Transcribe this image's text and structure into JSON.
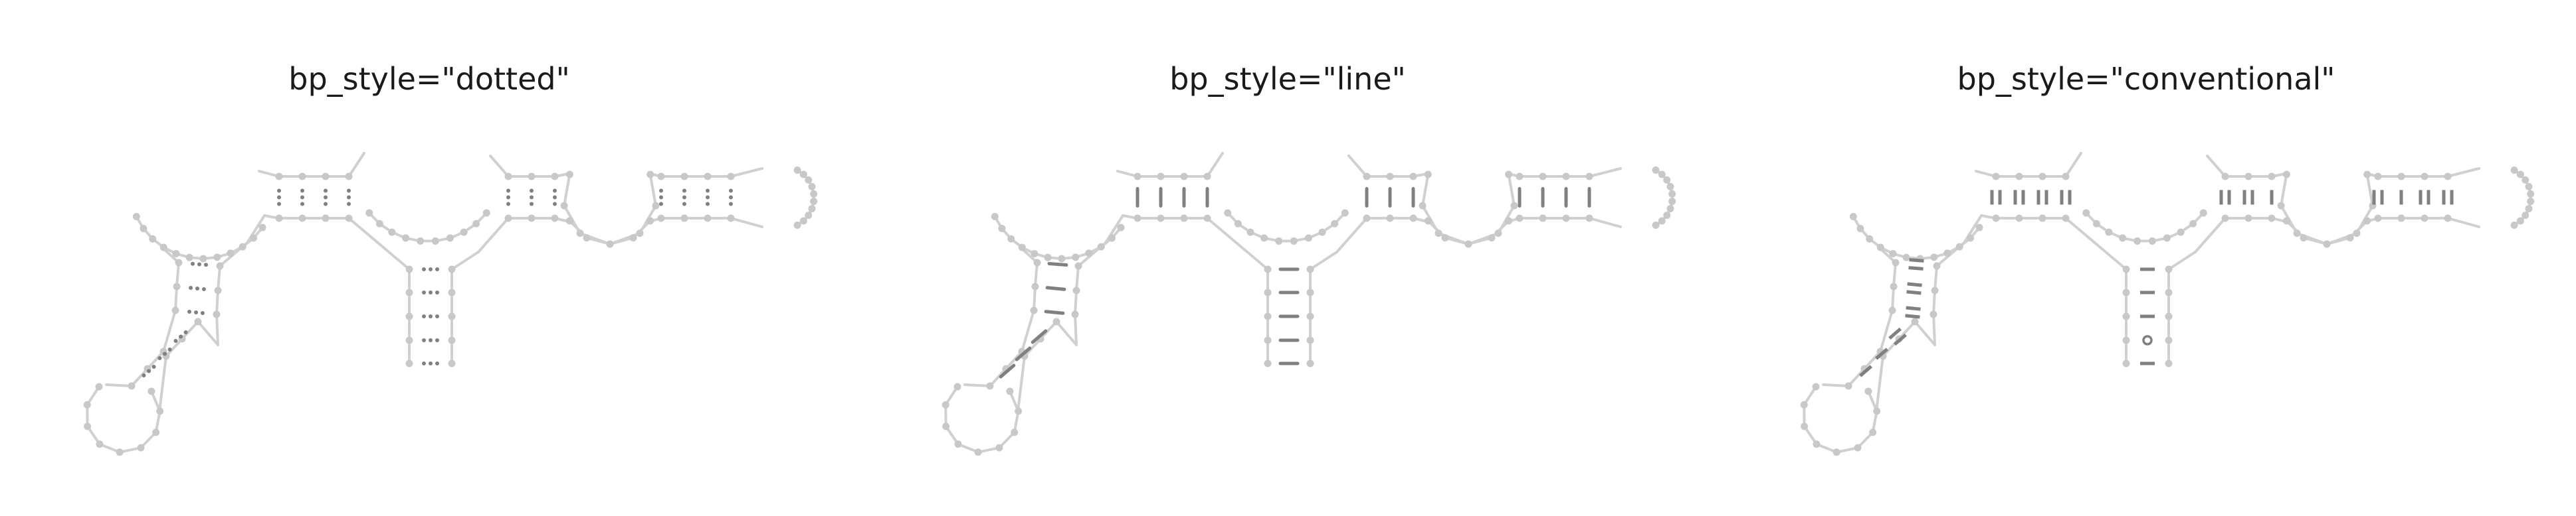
{
  "panels": [
    {
      "title": "bp_style=\"dotted\"",
      "style": "dotted"
    },
    {
      "title": "bp_style=\"line\"",
      "style": "line"
    },
    {
      "title": "bp_style=\"conventional\"",
      "style": "conventional"
    }
  ],
  "colors": {
    "backbone": "#d0d0d0",
    "nucleotide": "#c8c8c8",
    "basepair": "#808080",
    "title": "#1a1a1a"
  }
}
